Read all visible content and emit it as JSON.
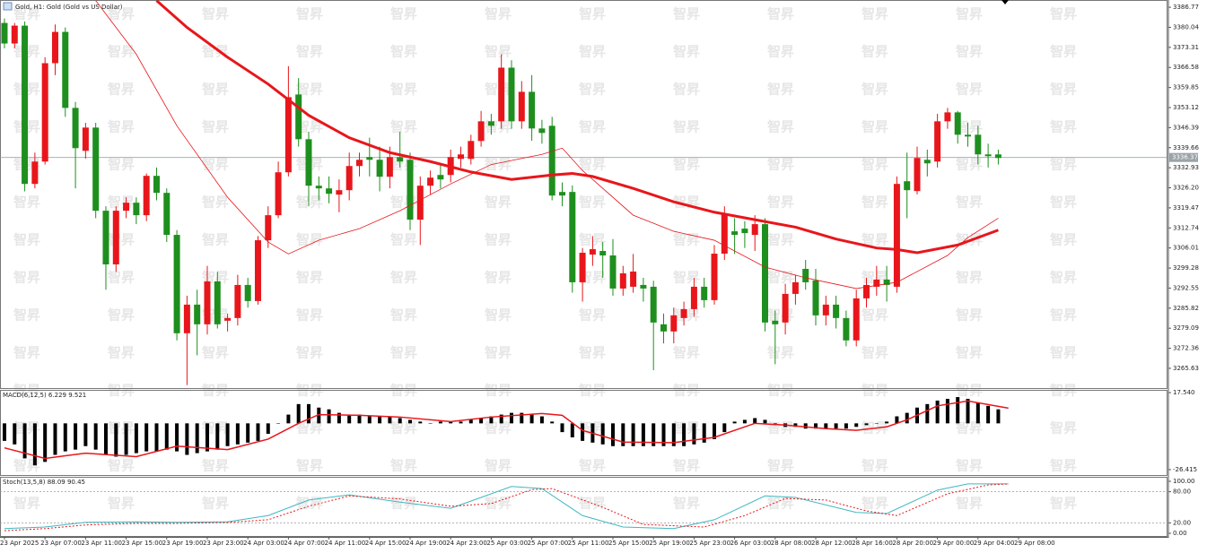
{
  "watermark": "智昇",
  "chart_data": [
    {
      "type": "candlestick",
      "title": "Gold, H1:  Gold (Gold vs US Dollar)",
      "up_color": "#e8161b",
      "down_color": "#1e8f1e",
      "xlim": [
        -0.44,
        114.6
      ],
      "ylim": [
        3259,
        3389.2
      ],
      "yticks": [
        3386.77,
        {
          "value": 3380.04,
          "label": "3380.04"
        },
        3373.31,
        3366.58,
        3359.85,
        3353.12,
        3346.39,
        3339.66,
        3332.93,
        {
          "value": 3326.2,
          "label": "3326.20"
        },
        3319.47,
        3312.74,
        3306.01,
        3299.28,
        3292.55,
        3285.82,
        3279.09,
        3272.36,
        3265.63
      ],
      "last_price": {
        "value": 3336.37,
        "label": "3336.37"
      },
      "xticks": [
        {
          "value": 0,
          "label": "23 Apr 2025"
        },
        {
          "value": 4,
          "label": "23 Apr 07:00"
        },
        {
          "value": 8,
          "label": "23 Apr 11:00"
        },
        {
          "value": 12,
          "label": "23 Apr 15:00"
        },
        {
          "value": 16,
          "label": "23 Apr 19:00"
        },
        {
          "value": 20,
          "label": "23 Apr 23:00"
        },
        {
          "value": 24,
          "label": "24 Apr 03:00"
        },
        {
          "value": 28,
          "label": "24 Apr 07:00"
        },
        {
          "value": 32,
          "label": "24 Apr 11:00"
        },
        {
          "value": 36,
          "label": "24 Apr 15:00"
        },
        {
          "value": 40,
          "label": "24 Apr 19:00"
        },
        {
          "value": 44,
          "label": "24 Apr 23:00"
        },
        {
          "value": 48,
          "label": "25 Apr 03:00"
        },
        {
          "value": 52,
          "label": "25 Apr 07:00"
        },
        {
          "value": 56,
          "label": "25 Apr 11:00"
        },
        {
          "value": 60,
          "label": "25 Apr 15:00"
        },
        {
          "value": 64,
          "label": "25 Apr 19:00"
        },
        {
          "value": 68,
          "label": "25 Apr 23:00"
        },
        {
          "value": 72,
          "label": "26 Apr 03:00"
        },
        {
          "value": 76,
          "label": "28 Apr 08:00"
        },
        {
          "value": 80,
          "label": "28 Apr 12:00"
        },
        {
          "value": 84,
          "label": "28 Apr 16:00"
        },
        {
          "value": 88,
          "label": "28 Apr 20:00"
        },
        {
          "value": 92,
          "label": "29 Apr 00:00"
        },
        {
          "value": 96,
          "label": "29 Apr 04:00"
        },
        {
          "value": 100,
          "label": "29 Apr 08:00"
        }
      ],
      "candles": [
        [
          3381.5,
          3383,
          3373,
          3374.6
        ],
        [
          3374.6,
          3381.5,
          3373,
          3380.6
        ],
        [
          3380.6,
          3382,
          3325,
          3327.5
        ],
        [
          3327.5,
          3338,
          3326,
          3335
        ],
        [
          3335,
          3370,
          3334,
          3368
        ],
        [
          3368,
          3381,
          3364,
          3378.5
        ],
        [
          3378.5,
          3380,
          3350,
          3353
        ],
        [
          3353,
          3355,
          3326,
          3339.5
        ],
        [
          3338.6,
          3348,
          3336,
          3346.4
        ],
        [
          3346.4,
          3348,
          3316,
          3318.5
        ],
        [
          3318.5,
          3320,
          3292,
          3300.5
        ],
        [
          3300.5,
          3320,
          3298,
          3318.5
        ],
        [
          3318.5,
          3323,
          3316,
          3321.2
        ],
        [
          3321.2,
          3323,
          3314,
          3317
        ],
        [
          3317,
          3331,
          3315,
          3330.2
        ],
        [
          3330.2,
          3333,
          3322,
          3324.5
        ],
        [
          3324.5,
          3326,
          3308,
          3310.4
        ],
        [
          3310.4,
          3312,
          3275,
          3277.4
        ],
        [
          3277.4,
          3290,
          3260,
          3287
        ],
        [
          3287,
          3292,
          3270,
          3280.4
        ],
        [
          3280.4,
          3300,
          3277,
          3294.8
        ],
        [
          3294.8,
          3298,
          3279,
          3280.4
        ],
        [
          3281.6,
          3284,
          3278,
          3282.5
        ],
        [
          3282.5,
          3297,
          3280,
          3293.6
        ],
        [
          3293.6,
          3296,
          3286,
          3288.2
        ],
        [
          3288.2,
          3310,
          3287,
          3308.6
        ],
        [
          3308.6,
          3320,
          3306,
          3317
        ],
        [
          3317,
          3335,
          3316,
          3331.4
        ],
        [
          3331.4,
          3367,
          3330,
          3356.6
        ],
        [
          3357.5,
          3363,
          3340,
          3342.5
        ],
        [
          3342.5,
          3345,
          3320,
          3326.9
        ],
        [
          3326.9,
          3330,
          3322,
          3326
        ],
        [
          3326,
          3330,
          3321,
          3324.2
        ],
        [
          3323.9,
          3329,
          3318,
          3325.4
        ],
        [
          3325.4,
          3338,
          3322,
          3333.5
        ],
        [
          3333.5,
          3338,
          3330,
          3335.6
        ],
        [
          3336.5,
          3343,
          3330,
          3335.6
        ],
        [
          3335.6,
          3340,
          3325,
          3329.9
        ],
        [
          3329.9,
          3340,
          3326,
          3336.5
        ],
        [
          3336.5,
          3345,
          3333,
          3335
        ],
        [
          3335.6,
          3338,
          3312,
          3315.5
        ],
        [
          3315.5,
          3330,
          3307,
          3326.9
        ],
        [
          3326.9,
          3332,
          3324,
          3329.6
        ],
        [
          3330.5,
          3334,
          3326,
          3329
        ],
        [
          3330.5,
          3339,
          3328,
          3336.5
        ],
        [
          3335.9,
          3340,
          3333,
          3337.4
        ],
        [
          3335.9,
          3344,
          3334,
          3341.9
        ],
        [
          3341.9,
          3352,
          3340,
          3348.5
        ],
        [
          3348.5,
          3351,
          3344,
          3347
        ],
        [
          3348.5,
          3371,
          3346,
          3366.5
        ],
        [
          3366.5,
          3369,
          3346,
          3348.5
        ],
        [
          3348.5,
          3362,
          3346,
          3358.4
        ],
        [
          3358.4,
          3364,
          3342,
          3346.1
        ],
        [
          3346.1,
          3349,
          3341,
          3344.6
        ],
        [
          3347,
          3350,
          3322,
          3323.6
        ],
        [
          3324.8,
          3328,
          3320,
          3323.6
        ],
        [
          3324.8,
          3327,
          3291,
          3294.5
        ],
        [
          3294.5,
          3306,
          3288,
          3304.4
        ],
        [
          3303.8,
          3310,
          3300,
          3305.6
        ],
        [
          3305,
          3308,
          3296,
          3303.5
        ],
        [
          3303.5,
          3309,
          3290,
          3292.4
        ],
        [
          3292.4,
          3300,
          3290,
          3297.5
        ],
        [
          3293,
          3304,
          3291,
          3298.1
        ],
        [
          3293.6,
          3296,
          3288,
          3292.4
        ],
        [
          3293,
          3295,
          3265,
          3281
        ],
        [
          3280.4,
          3284,
          3274,
          3278
        ],
        [
          3278,
          3286,
          3274,
          3283.4
        ],
        [
          3282.5,
          3288,
          3280,
          3285.5
        ],
        [
          3285.5,
          3296,
          3283,
          3293
        ],
        [
          3293,
          3296,
          3286,
          3288.5
        ],
        [
          3288.5,
          3307,
          3287,
          3304.1
        ],
        [
          3304.1,
          3320,
          3302,
          3317.6
        ],
        [
          3311.6,
          3316,
          3304,
          3310.4
        ],
        [
          3312.5,
          3315,
          3306,
          3311
        ],
        [
          3310.4,
          3317,
          3305,
          3314
        ],
        [
          3314,
          3316,
          3278,
          3281
        ],
        [
          3281.6,
          3285,
          3267,
          3280.4
        ],
        [
          3281,
          3294,
          3277,
          3290.6
        ],
        [
          3290.6,
          3297,
          3287,
          3294.5
        ],
        [
          3299,
          3302,
          3292,
          3294.5
        ],
        [
          3295.1,
          3299,
          3280,
          3283.4
        ],
        [
          3283.4,
          3290,
          3280,
          3287
        ],
        [
          3287,
          3290,
          3279,
          3282.5
        ],
        [
          3282.5,
          3285,
          3273,
          3275
        ],
        [
          3275,
          3292,
          3273,
          3289.1
        ],
        [
          3289.1,
          3296,
          3286,
          3293.6
        ],
        [
          3293,
          3300,
          3290,
          3295.4
        ],
        [
          3295.4,
          3300,
          3288,
          3293.6
        ],
        [
          3293,
          3330,
          3291,
          3327.5
        ],
        [
          3328.4,
          3338,
          3316,
          3325.4
        ],
        [
          3325.1,
          3340,
          3324,
          3336.2
        ],
        [
          3335.6,
          3339,
          3330,
          3334.4
        ],
        [
          3335,
          3351,
          3333,
          3348.5
        ],
        [
          3348.5,
          3353,
          3346,
          3351.5
        ],
        [
          3351.5,
          3352,
          3341,
          3344
        ],
        [
          3344,
          3348,
          3340,
          3343.4
        ],
        [
          3344,
          3347,
          3334,
          3337.4
        ],
        [
          3337.4,
          3341,
          3333,
          3336.8
        ],
        [
          3337.4,
          3339,
          3334,
          3336.2
        ]
      ],
      "series": [
        {
          "color": "#e8161b",
          "width": 3,
          "x": [
            15,
            18,
            22,
            26,
            30,
            34,
            38,
            42,
            46,
            50,
            54,
            56,
            58,
            62,
            66,
            70,
            74,
            78,
            82,
            86,
            88,
            90,
            94,
            98
          ],
          "values": [
            3389,
            3380,
            3370,
            3361,
            3350.5,
            3343,
            3338,
            3335,
            3331.5,
            3329,
            3330.5,
            3331,
            3330,
            3326,
            3321.5,
            3318,
            3315.5,
            3313,
            3309,
            3306,
            3305.5,
            3304.4,
            3307,
            3312
          ]
        },
        {
          "color": "#e8161b",
          "width": 0.8,
          "x": [
            9,
            13,
            17,
            22,
            26,
            28,
            31,
            35,
            39,
            44,
            48,
            53,
            55,
            57,
            62,
            66,
            70,
            75,
            79,
            84,
            88,
            93,
            95,
            98
          ],
          "values": [
            3389,
            3371,
            3347,
            3323,
            3308,
            3304,
            3308.6,
            3312.5,
            3318.5,
            3327.5,
            3334,
            3337.4,
            3339.5,
            3332,
            3317,
            3311.6,
            3308.6,
            3299.6,
            3296,
            3292.4,
            3294.5,
            3303.5,
            3309.5,
            3316
          ]
        }
      ]
    },
    {
      "type": "bar",
      "title": "MACD(6,12,5) 6.229 9.521",
      "color": "#000000",
      "ylim": [
        -29.5,
        18.6
      ],
      "yticks": [
        {
          "value": 17.54,
          "label": "17.540"
        },
        -26.415
      ],
      "values": [
        -10,
        -12,
        -20,
        -24,
        -22,
        -18,
        -16,
        -15,
        -13,
        -15,
        -18,
        -19,
        -18,
        -17,
        -16,
        -16,
        -15,
        -16,
        -18,
        -17,
        -16,
        -15,
        -13,
        -12,
        -11,
        -10,
        -6,
        0,
        5,
        11,
        11,
        9,
        8,
        6,
        5,
        5,
        4,
        4,
        4,
        3,
        2,
        1,
        0,
        1,
        1,
        1,
        2,
        3,
        4,
        5,
        6,
        6,
        5,
        4,
        1,
        -5,
        -8,
        -10,
        -11,
        -12,
        -13,
        -13,
        -13,
        -13,
        -13,
        -13,
        -13,
        -13,
        -12,
        -11,
        -9,
        -5,
        1,
        2,
        3,
        2,
        -1,
        -2,
        -2,
        -3,
        -3,
        -3,
        -3,
        -3,
        -2,
        -1,
        0,
        1,
        4,
        6,
        9,
        11,
        13,
        14,
        15,
        14,
        12,
        10,
        8
      ],
      "series": [
        {
          "color": "#e8161b",
          "width": 1.5,
          "x": [
            0,
            4,
            8,
            13,
            17,
            22,
            26,
            29,
            31,
            35,
            39,
            44,
            48,
            53,
            55,
            57,
            61,
            66,
            70,
            74,
            77,
            81,
            84,
            87,
            89,
            92,
            95,
            99
          ],
          "values": [
            -14,
            -20,
            -17,
            -19,
            -13,
            -15,
            -9,
            0,
            5,
            4.6,
            3.6,
            1,
            3.6,
            5.6,
            4.6,
            -4,
            -10.7,
            -11,
            -8,
            0,
            -1,
            -3,
            -4,
            -2,
            2,
            10,
            12.8,
            8.7
          ]
        }
      ]
    },
    {
      "type": "line",
      "title": "Stoch(13,5,8) 88.09 90.45",
      "ylim": [
        -5.2,
        106.9
      ],
      "yticks": [
        {
          "value": 100,
          "label": "100.00"
        },
        {
          "value": 80,
          "label": "80.00"
        },
        {
          "value": 20,
          "label": "20.00"
        },
        {
          "value": 0,
          "label": "0.00"
        }
      ],
      "levels": [
        80,
        20
      ],
      "series": [
        {
          "color": "#3fb8c0",
          "dash": false,
          "x": [
            0,
            4,
            8,
            13,
            17,
            22,
            26,
            30,
            34,
            39,
            44,
            47,
            50,
            53,
            57,
            61,
            66,
            70,
            75,
            78,
            84,
            87,
            92,
            95,
            99
          ],
          "values": [
            9,
            12,
            21,
            22,
            21,
            22,
            34,
            64,
            74,
            60,
            48,
            69,
            90,
            86,
            34,
            12,
            9,
            26,
            72,
            69,
            40,
            38,
            83,
            95,
            95
          ]
        },
        {
          "color": "#e8161b",
          "dash": true,
          "x": [
            0,
            4,
            8,
            13,
            17,
            22,
            26,
            30,
            34,
            39,
            44,
            48,
            52,
            54,
            59,
            63,
            69,
            73,
            77,
            81,
            85,
            88,
            93,
            97,
            99
          ],
          "values": [
            5,
            9,
            16,
            19,
            19,
            21,
            26,
            52,
            72,
            66,
            52,
            57,
            84,
            86,
            50,
            17,
            12,
            34,
            67,
            64,
            43,
            34,
            76,
            93,
            95
          ]
        }
      ]
    }
  ]
}
